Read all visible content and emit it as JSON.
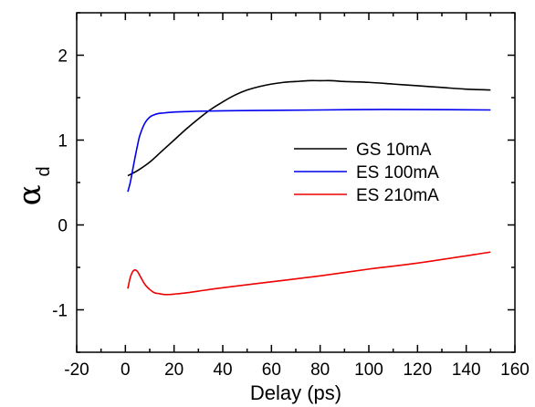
{
  "chart_data": {
    "type": "line",
    "xlabel": "Delay (ps)",
    "ylabel": "α",
    "ylabel_subscript": "d",
    "xlim": [
      -20,
      160
    ],
    "ylim": [
      -1.5,
      2.5
    ],
    "xticks": [
      -20,
      0,
      20,
      40,
      60,
      80,
      100,
      120,
      140,
      160
    ],
    "yticks": [
      -1,
      0,
      1,
      2
    ],
    "xtick_labels": [
      "-20",
      "0",
      "20",
      "40",
      "60",
      "80",
      "100",
      "120",
      "140",
      "160"
    ],
    "ytick_labels": [
      "-1",
      "0",
      "1",
      "2"
    ],
    "grid": false,
    "legend_position": "center-right",
    "series": [
      {
        "name": "GS 10mA",
        "color": "#000000",
        "x": [
          1,
          5,
          10,
          15,
          20,
          25,
          30,
          35,
          40,
          45,
          50,
          55,
          60,
          65,
          70,
          75,
          80,
          85,
          90,
          100,
          110,
          120,
          130,
          140,
          150
        ],
        "y": [
          0.58,
          0.64,
          0.74,
          0.87,
          1.0,
          1.13,
          1.25,
          1.36,
          1.45,
          1.53,
          1.59,
          1.63,
          1.66,
          1.68,
          1.69,
          1.7,
          1.7,
          1.7,
          1.69,
          1.68,
          1.66,
          1.64,
          1.62,
          1.6,
          1.59
        ]
      },
      {
        "name": "ES 100mA",
        "color": "#0000ee",
        "x": [
          1,
          2,
          3,
          4,
          5,
          6,
          8,
          10,
          12,
          14,
          16,
          20,
          25,
          30,
          40,
          60,
          80,
          100,
          120,
          150
        ],
        "y": [
          0.39,
          0.5,
          0.65,
          0.8,
          0.94,
          1.06,
          1.2,
          1.27,
          1.3,
          1.315,
          1.32,
          1.33,
          1.335,
          1.34,
          1.345,
          1.35,
          1.355,
          1.36,
          1.36,
          1.355
        ]
      },
      {
        "name": "ES 210mA",
        "color": "#ee0000",
        "x": [
          1,
          2,
          3,
          4,
          5,
          6,
          8,
          10,
          12,
          14,
          16,
          18,
          20,
          25,
          30,
          40,
          60,
          80,
          100,
          120,
          150
        ],
        "y": [
          -0.75,
          -0.62,
          -0.55,
          -0.53,
          -0.55,
          -0.6,
          -0.7,
          -0.76,
          -0.8,
          -0.81,
          -0.82,
          -0.82,
          -0.815,
          -0.8,
          -0.78,
          -0.74,
          -0.67,
          -0.6,
          -0.52,
          -0.45,
          -0.32
        ]
      }
    ]
  }
}
